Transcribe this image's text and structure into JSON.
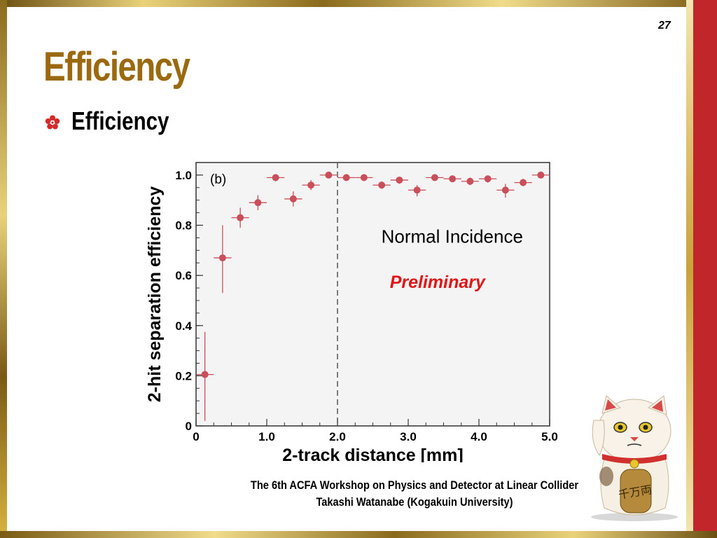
{
  "slide": {
    "page_number": "27",
    "title": "Efficiency",
    "bullet": "Efficiency",
    "footer_line1": "The 6th ACFA Workshop on Physics and Detector at Linear Collider",
    "footer_line2": "Takashi Watanabe (Kogakuin University)"
  },
  "colors": {
    "title": "#9b6a10",
    "marker": "#c94f5a",
    "preliminary": "#e01515",
    "accent_bar": "#c0262a"
  },
  "chart_data": {
    "type": "scatter",
    "panel_label": "(b)",
    "xlabel": "2-track distance [mm]",
    "ylabel": "2-hit separation efficiency",
    "xlim": [
      0,
      5.0
    ],
    "ylim": [
      0,
      1.05
    ],
    "x_ticks": [
      {
        "v": 0,
        "t": "0"
      },
      {
        "v": 1.0,
        "t": "1.0"
      },
      {
        "v": 2.0,
        "t": "2.0"
      },
      {
        "v": 3.0,
        "t": "3.0"
      },
      {
        "v": 4.0,
        "t": "4.0"
      },
      {
        "v": 5.0,
        "t": "5.0"
      }
    ],
    "y_ticks": [
      {
        "v": 0,
        "t": "0"
      },
      {
        "v": 0.2,
        "t": "0.2"
      },
      {
        "v": 0.4,
        "t": "0.4"
      },
      {
        "v": 0.6,
        "t": "0.6"
      },
      {
        "v": 0.8,
        "t": "0.8"
      },
      {
        "v": 1.0,
        "t": "1.0"
      }
    ],
    "vline_x": 2.0,
    "annotations": [
      "Normal Incidence",
      "Preliminary"
    ],
    "points": [
      {
        "x": 0.125,
        "y": 0.205,
        "lo": 0.02,
        "hi": 0.375,
        "xerr": 0.125
      },
      {
        "x": 0.375,
        "y": 0.67,
        "lo": 0.53,
        "hi": 0.8,
        "xerr": 0.125
      },
      {
        "x": 0.625,
        "y": 0.83,
        "lo": 0.79,
        "hi": 0.87,
        "xerr": 0.125
      },
      {
        "x": 0.875,
        "y": 0.89,
        "lo": 0.86,
        "hi": 0.92,
        "xerr": 0.125
      },
      {
        "x": 1.125,
        "y": 0.99,
        "lo": 0.975,
        "hi": 1.0,
        "xerr": 0.125
      },
      {
        "x": 1.375,
        "y": 0.905,
        "lo": 0.875,
        "hi": 0.935,
        "xerr": 0.125
      },
      {
        "x": 1.625,
        "y": 0.96,
        "lo": 0.94,
        "hi": 0.98,
        "xerr": 0.125
      },
      {
        "x": 1.875,
        "y": 1.0,
        "lo": 0.99,
        "hi": 1.0,
        "xerr": 0.125
      },
      {
        "x": 2.125,
        "y": 0.99,
        "lo": 0.98,
        "hi": 1.0,
        "xerr": 0.125
      },
      {
        "x": 2.375,
        "y": 0.99,
        "lo": 0.98,
        "hi": 1.0,
        "xerr": 0.125
      },
      {
        "x": 2.625,
        "y": 0.96,
        "lo": 0.945,
        "hi": 0.975,
        "xerr": 0.125
      },
      {
        "x": 2.875,
        "y": 0.98,
        "lo": 0.965,
        "hi": 0.99,
        "xerr": 0.125
      },
      {
        "x": 3.125,
        "y": 0.94,
        "lo": 0.915,
        "hi": 0.96,
        "xerr": 0.125
      },
      {
        "x": 3.375,
        "y": 0.99,
        "lo": 0.98,
        "hi": 1.0,
        "xerr": 0.125
      },
      {
        "x": 3.625,
        "y": 0.985,
        "lo": 0.975,
        "hi": 0.995,
        "xerr": 0.125
      },
      {
        "x": 3.875,
        "y": 0.975,
        "lo": 0.96,
        "hi": 0.99,
        "xerr": 0.125
      },
      {
        "x": 4.125,
        "y": 0.985,
        "lo": 0.97,
        "hi": 0.995,
        "xerr": 0.125
      },
      {
        "x": 4.375,
        "y": 0.94,
        "lo": 0.91,
        "hi": 0.965,
        "xerr": 0.125
      },
      {
        "x": 4.625,
        "y": 0.97,
        "lo": 0.955,
        "hi": 0.985,
        "xerr": 0.125
      },
      {
        "x": 4.875,
        "y": 1.0,
        "lo": 0.99,
        "hi": 1.0,
        "xerr": 0.125
      }
    ]
  }
}
